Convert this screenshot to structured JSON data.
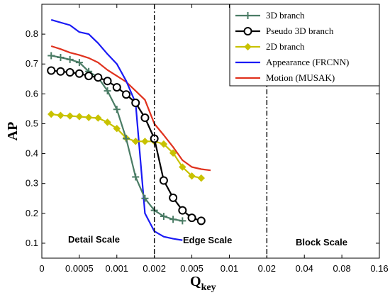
{
  "chart_data": {
    "type": "line",
    "title": "",
    "xlabel": "Q",
    "xlabel_subscript": "key",
    "ylabel": "AP",
    "x_tick_labels": [
      "0",
      "0.0005",
      "0.001",
      "0.002",
      "0.005",
      "0.01",
      "0.02",
      "0.04",
      "0.08",
      "0.16"
    ],
    "ylim": [
      0.05,
      0.9
    ],
    "y_ticks": [
      0.1,
      0.2,
      0.3,
      0.4,
      0.5,
      0.6,
      0.7,
      0.8
    ],
    "y_tick_labels": [
      "0.1",
      "0.2",
      "0.3",
      "0.4",
      "0.5",
      "0.6",
      "0.7",
      "0.8"
    ],
    "grid": false,
    "legend_position": "top-right",
    "vertical_lines_at_tick_index": [
      3,
      6
    ],
    "region_labels": [
      "Detail Scale",
      "Edge Scale",
      "Block Scale"
    ],
    "series": [
      {
        "name": "3D branch",
        "color": "#4a7c65",
        "marker": "plus",
        "x": [
          0.25,
          0.5,
          0.75,
          1.0,
          1.25,
          1.5,
          1.75,
          2.0,
          2.25,
          2.5,
          2.75,
          3.0,
          3.25,
          3.5,
          3.75
        ],
        "y": [
          0.728,
          0.722,
          0.715,
          0.705,
          0.675,
          0.655,
          0.61,
          0.548,
          0.45,
          0.322,
          0.25,
          0.21,
          0.19,
          0.18,
          0.175
        ]
      },
      {
        "name": "Pseudo 3D branch",
        "color": "#000000",
        "marker": "circle",
        "x": [
          0.25,
          0.5,
          0.75,
          1.0,
          1.25,
          1.5,
          1.75,
          2.0,
          2.25,
          2.5,
          2.75,
          3.0,
          3.25,
          3.5,
          3.75,
          4.0,
          4.25
        ],
        "y": [
          0.678,
          0.675,
          0.672,
          0.668,
          0.66,
          0.655,
          0.643,
          0.622,
          0.598,
          0.57,
          0.52,
          0.45,
          0.31,
          0.252,
          0.21,
          0.185,
          0.175
        ]
      },
      {
        "name": "2D branch",
        "color": "#c8c200",
        "marker": "diamond",
        "x": [
          0.25,
          0.5,
          0.75,
          1.0,
          1.25,
          1.5,
          1.75,
          2.0,
          2.25,
          2.5,
          2.75,
          3.0,
          3.25,
          3.5,
          3.75,
          4.0,
          4.25
        ],
        "y": [
          0.532,
          0.528,
          0.526,
          0.524,
          0.521,
          0.519,
          0.505,
          0.484,
          0.452,
          0.441,
          0.441,
          0.441,
          0.432,
          0.402,
          0.355,
          0.325,
          0.318
        ]
      },
      {
        "name": "Appearance (FRCNN)",
        "color": "#1a1af5",
        "marker": "none",
        "x": [
          0.25,
          0.75,
          1.0,
          1.25,
          1.5,
          1.75,
          2.0,
          2.25,
          2.5,
          2.75,
          3.0,
          3.25,
          3.5,
          3.75
        ],
        "y": [
          0.848,
          0.83,
          0.807,
          0.8,
          0.77,
          0.733,
          0.7,
          0.643,
          0.57,
          0.2,
          0.14,
          0.122,
          0.115,
          0.11
        ]
      },
      {
        "name": "Motion (MUSAK)",
        "color": "#e0321e",
        "marker": "none",
        "x": [
          0.25,
          0.5,
          0.75,
          1.0,
          1.25,
          1.5,
          1.75,
          2.0,
          2.25,
          2.5,
          2.75,
          3.0,
          3.25,
          3.5,
          3.75,
          4.0,
          4.25,
          4.5
        ],
        "y": [
          0.76,
          0.75,
          0.738,
          0.73,
          0.72,
          0.705,
          0.68,
          0.66,
          0.64,
          0.61,
          0.58,
          0.5,
          0.462,
          0.422,
          0.378,
          0.355,
          0.348,
          0.344
        ]
      }
    ]
  }
}
